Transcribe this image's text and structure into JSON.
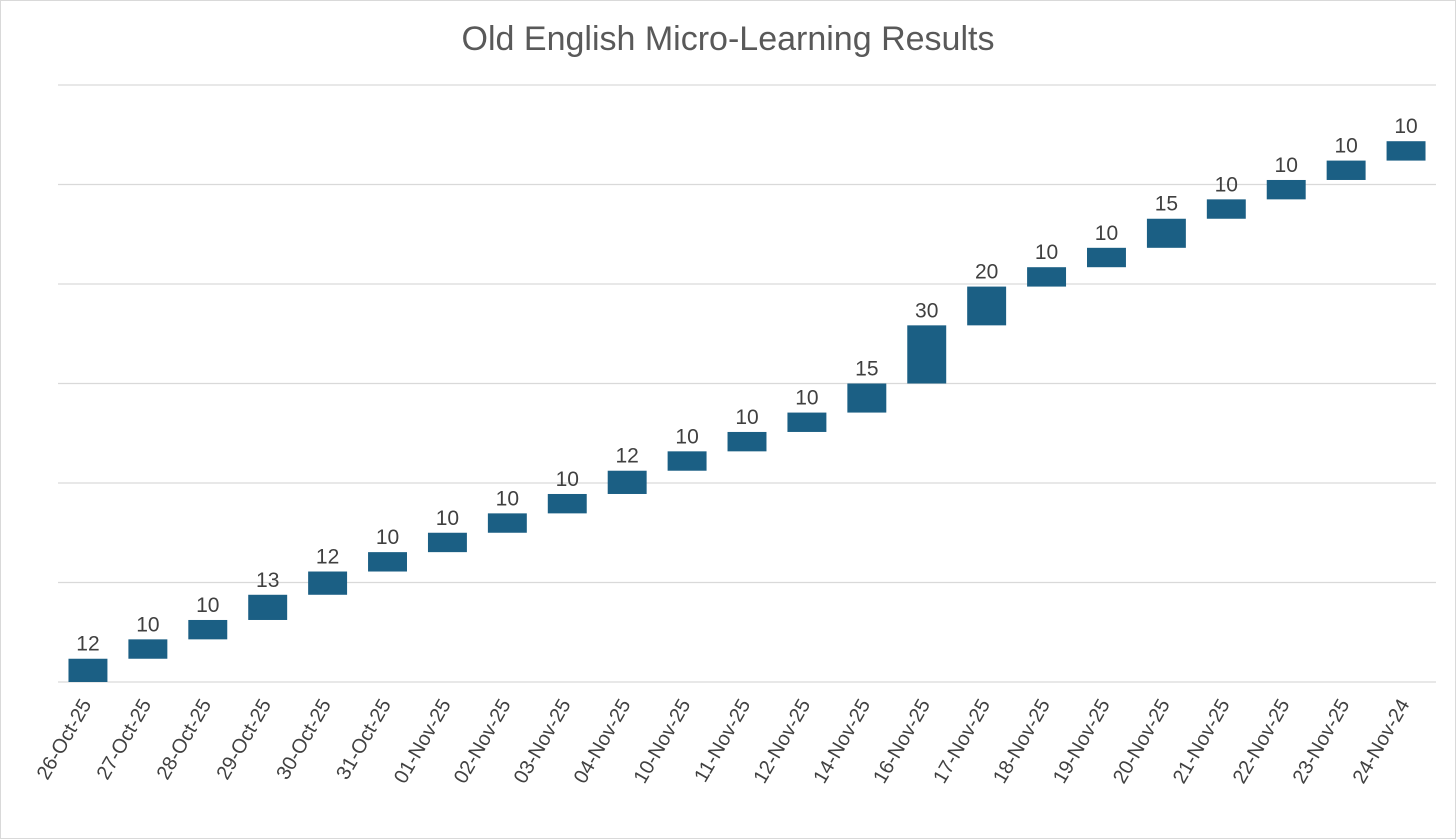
{
  "chart_data": {
    "type": "bar",
    "subtype": "waterfall",
    "title": "Old English Micro-Learning Results",
    "xlabel": "",
    "ylabel": "",
    "categories": [
      "26-Oct-25",
      "27-Oct-25",
      "28-Oct-25",
      "29-Oct-25",
      "30-Oct-25",
      "31-Oct-25",
      "01-Nov-25",
      "02-Nov-25",
      "03-Nov-25",
      "04-Nov-25",
      "10-Nov-25",
      "11-Nov-25",
      "12-Nov-25",
      "14-Nov-25",
      "16-Nov-25",
      "17-Nov-25",
      "18-Nov-25",
      "19-Nov-25",
      "20-Nov-25",
      "21-Nov-25",
      "22-Nov-25",
      "23-Nov-25",
      "24-Nov-24"
    ],
    "values": [
      12,
      10,
      10,
      13,
      12,
      10,
      10,
      10,
      10,
      12,
      10,
      10,
      10,
      15,
      30,
      20,
      10,
      10,
      15,
      10,
      10,
      10,
      10
    ],
    "ylim": [
      0,
      308
    ],
    "y_ticks_shown": false,
    "grid": true,
    "data_labels": true,
    "colors": {
      "bar": "#1b5f84",
      "grid": "#d9d9d9",
      "text": "#595959"
    }
  }
}
